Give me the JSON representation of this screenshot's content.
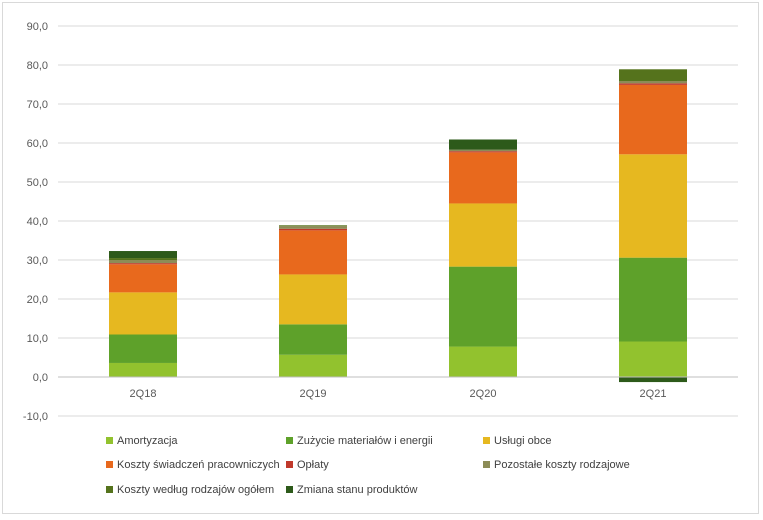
{
  "chart_data": {
    "type": "bar",
    "stacked": true,
    "title": "",
    "xlabel": "",
    "ylabel": "",
    "ylim": [
      -10,
      90
    ],
    "yticks": [
      -10,
      0,
      10,
      20,
      30,
      40,
      50,
      60,
      70,
      80,
      90
    ],
    "ytick_labels": [
      "-10,0",
      "0,0",
      "10,0",
      "20,0",
      "30,0",
      "40,0",
      "50,0",
      "60,0",
      "70,0",
      "80,0",
      "90,0"
    ],
    "grid": true,
    "legend_position": "bottom",
    "categories": [
      "2Q18",
      "2Q19",
      "2Q20",
      "2Q21"
    ],
    "series": [
      {
        "name": "Amortyzacja",
        "color": "#92c22e",
        "values": [
          3.6,
          5.7,
          7.8,
          9.1
        ]
      },
      {
        "name": "Zużycie materiałów i energii",
        "color": "#5ea12a",
        "values": [
          7.3,
          7.8,
          20.5,
          21.5
        ]
      },
      {
        "name": "Usługi obce",
        "color": "#e6b820",
        "values": [
          10.8,
          12.8,
          16.2,
          26.5
        ]
      },
      {
        "name": "Koszty świadczeń pracowniczych",
        "color": "#e8691d",
        "values": [
          7.2,
          11.3,
          13.1,
          17.8
        ]
      },
      {
        "name": "Opłaty",
        "color": "#c0392b",
        "values": [
          0.3,
          0.4,
          0.3,
          0.4
        ]
      },
      {
        "name": "Pozostałe koszty rodzajowe",
        "color": "#8c8c57",
        "values": [
          0.8,
          0.7,
          0.4,
          0.6
        ]
      },
      {
        "name": "Koszty według rodzajów ogółem",
        "color": "#55731c",
        "values": [
          0.5,
          0.2,
          0.0,
          3.0
        ]
      },
      {
        "name": "Zmiana stanu produktów",
        "color": "#2d5a1a",
        "values": [
          1.8,
          0.0,
          2.6,
          -1.3
        ]
      }
    ]
  }
}
